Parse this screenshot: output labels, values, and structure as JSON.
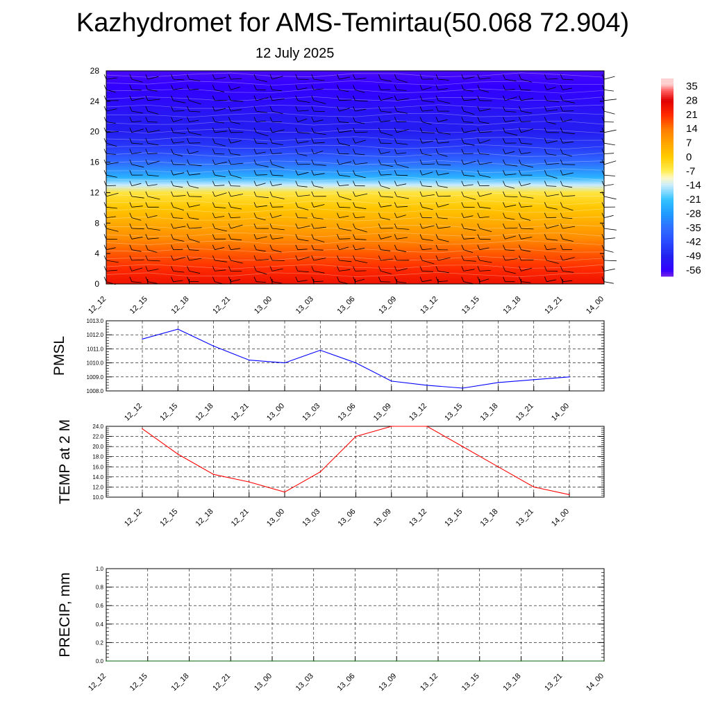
{
  "title": "Kazhydromet for AMS-Temirtau(50.068 72.904)",
  "subtitle": "12 July 2025",
  "colors": {
    "pmsl_line": "#0000ff",
    "temp_line": "#ff0000",
    "precip_line": "#006400"
  },
  "chart_data": [
    {
      "type": "heatmap",
      "title": "",
      "xlabel": "",
      "ylabel": "",
      "x_ticks": [
        "12_12",
        "12_15",
        "12_18",
        "12_21",
        "13_00",
        "13_03",
        "13_06",
        "13_09",
        "13_12",
        "13_15",
        "13_18",
        "13_21",
        "14_00"
      ],
      "y_ticks": [
        0,
        4,
        8,
        12,
        16,
        20,
        24,
        28
      ],
      "ylim": [
        0,
        28
      ],
      "colorbar_labels": [
        "35",
        "28",
        "21",
        "14",
        "7",
        "0",
        "-7",
        "-14",
        "-21",
        "-28",
        "-35",
        "-42",
        "-49",
        "-56"
      ],
      "vertical_profile": [
        {
          "y": 0,
          "value": 25
        },
        {
          "y": 2,
          "value": 21
        },
        {
          "y": 4,
          "value": 17
        },
        {
          "y": 6,
          "value": 11
        },
        {
          "y": 8,
          "value": 6
        },
        {
          "y": 10,
          "value": 1
        },
        {
          "y": 12,
          "value": -5
        },
        {
          "y": 13,
          "value": -14
        },
        {
          "y": 14,
          "value": -24
        },
        {
          "y": 16,
          "value": -36
        },
        {
          "y": 18,
          "value": -45
        },
        {
          "y": 20,
          "value": -50
        },
        {
          "y": 22,
          "value": -51
        },
        {
          "y": 24,
          "value": -54
        },
        {
          "y": 26,
          "value": -56
        },
        {
          "y": 28,
          "value": -57
        }
      ],
      "wind_barbs": "overlay"
    },
    {
      "type": "line",
      "ylabel": "PMSL",
      "x": [
        "12_12",
        "12_15",
        "12_18",
        "12_21",
        "13_00",
        "13_03",
        "13_06",
        "13_09",
        "13_12",
        "13_15",
        "13_18",
        "13_21",
        "14_00"
      ],
      "ylim": [
        1008.0,
        1013.0
      ],
      "y_ticks": [
        "1008.0",
        "1009.0",
        "1010.0",
        "1011.0",
        "1012.0",
        "1013.0"
      ],
      "series": [
        {
          "values": [
            1011.7,
            1012.4,
            1011.2,
            1010.2,
            1010.0,
            1010.9,
            1010.0,
            1008.7,
            1008.4,
            1008.2,
            1008.6,
            1008.8,
            1009.0
          ]
        }
      ],
      "grid": true
    },
    {
      "type": "line",
      "ylabel": "TEMP at 2 M",
      "x": [
        "12_12",
        "12_15",
        "12_18",
        "12_21",
        "13_00",
        "13_03",
        "13_06",
        "13_09",
        "13_12",
        "13_15",
        "13_18",
        "13_21",
        "14_00"
      ],
      "ylim": [
        10.0,
        24.0
      ],
      "y_ticks": [
        "10.0",
        "12.0",
        "14.0",
        "16.0",
        "18.0",
        "20.0",
        "22.0",
        "24.0"
      ],
      "series": [
        {
          "values": [
            23.5,
            18.5,
            14.5,
            13.0,
            11.0,
            15.0,
            22.0,
            24.0,
            24.0,
            20.0,
            16.0,
            12.0,
            10.5
          ]
        }
      ],
      "grid": true
    },
    {
      "type": "line",
      "ylabel": "PRECIP, mm",
      "x": [
        "12_12",
        "12_15",
        "12_18",
        "12_21",
        "13_00",
        "13_03",
        "13_06",
        "13_09",
        "13_12",
        "13_15",
        "13_18",
        "13_21",
        "14_00"
      ],
      "ylim": [
        0.0,
        1.0
      ],
      "y_ticks": [
        "0.0",
        "0.2",
        "0.4",
        "0.6",
        "0.8",
        "1.0"
      ],
      "series": [
        {
          "values": [
            0,
            0,
            0,
            0,
            0,
            0,
            0,
            0,
            0,
            0,
            0,
            0,
            0
          ]
        }
      ],
      "grid": true
    }
  ]
}
